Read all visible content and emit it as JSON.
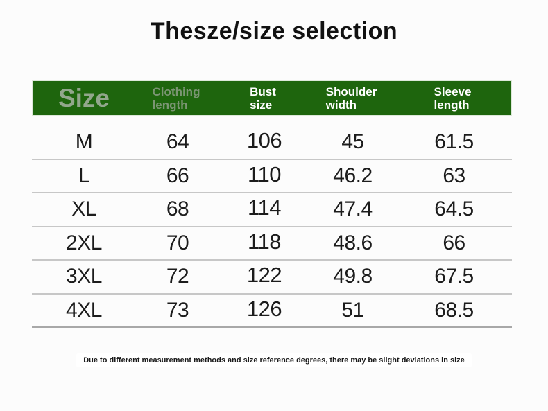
{
  "page": {
    "title": "Thesze/size selection",
    "footnote": "Due to different measurement methods and size reference degrees, there may be slight deviations in size"
  },
  "colors": {
    "background": "#fcfcfc",
    "header_background": "#1e650d",
    "header_text_white": "#ffffff",
    "header_text_size_label": "#92a78c",
    "header_text_muted": "#7b9573",
    "row_text": "#1c1c1c",
    "row_divider": "#c7c7c7",
    "last_divider": "#a8a8a8"
  },
  "header": {
    "columns": [
      {
        "id": "size",
        "line1": "Size",
        "line2": ""
      },
      {
        "id": "clothing-length",
        "line1": "Clothing",
        "line2": "length"
      },
      {
        "id": "bust-size",
        "line1": "Bust",
        "line2": "size"
      },
      {
        "id": "shoulder-width",
        "line1": "Shoulder",
        "line2": "width"
      },
      {
        "id": "sleeve-length",
        "line1": "Sleeve",
        "line2": "length"
      }
    ]
  },
  "chart_data": {
    "type": "table",
    "title": "Thesze/size selection",
    "columns": [
      "Size",
      "Clothing length",
      "Bust size",
      "Shoulder width",
      "Sleeve length"
    ],
    "rows": [
      [
        "M",
        "64",
        "106",
        "45",
        "61.5"
      ],
      [
        "L",
        "66",
        "110",
        "46.2",
        "63"
      ],
      [
        "XL",
        "68",
        "114",
        "47.4",
        "64.5"
      ],
      [
        "2XL",
        "70",
        "118",
        "48.6",
        "66"
      ],
      [
        "3XL",
        "72",
        "122",
        "49.8",
        "67.5"
      ],
      [
        "4XL",
        "73",
        "126",
        "51",
        "68.5"
      ]
    ],
    "footnote": "Due to different measurement methods and size reference degrees, there may be slight deviations in size"
  }
}
